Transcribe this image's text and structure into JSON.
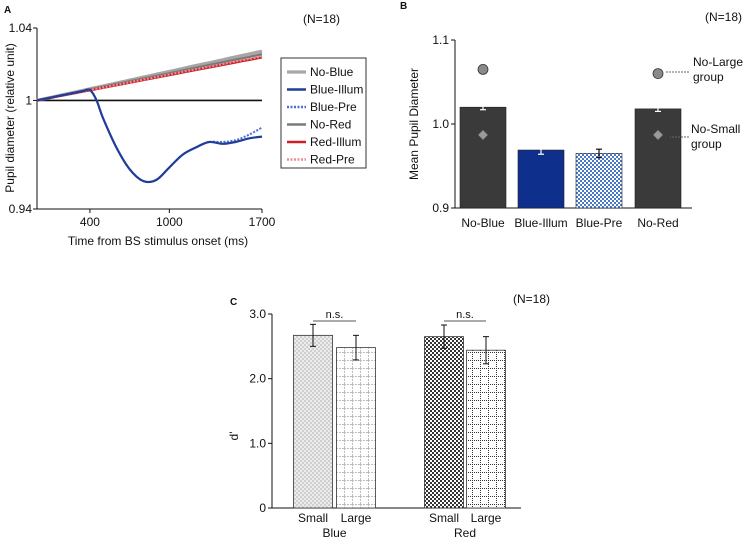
{
  "colors": {
    "no_blue": "#a6a6a6",
    "blue_illum": "#1f3d99",
    "blue_pre": "#4a6fd1",
    "no_red": "#7a7a7a",
    "red_illum": "#c8202a",
    "red_pre": "#f08b8b",
    "dark_bar": "#3a3a3a",
    "navy_bar": "#0f2f8c",
    "check_bar": "#8fb3e8"
  },
  "chart_data": [
    {
      "panel": "A",
      "type": "line",
      "title": "(N=18)",
      "xlabel": "Time from BS stimulus onset (ms)",
      "ylabel": "Pupil diameter (relative unit)",
      "xlim": [
        0,
        1700
      ],
      "ylim": [
        0.94,
        1.04
      ],
      "xticks": [
        "400",
        "1000",
        "1700"
      ],
      "yticks": [
        "0.94",
        "1",
        "1.04"
      ],
      "reference_line": 1,
      "x": [
        0,
        100,
        200,
        300,
        350,
        400,
        450,
        500,
        600,
        700,
        800,
        900,
        1000,
        1100,
        1200,
        1300,
        1400,
        1500,
        1600,
        1700
      ],
      "series": [
        {
          "name": "No-Blue",
          "style": "solid-light",
          "values": [
            1.0,
            1.0016,
            1.0032,
            1.0048,
            1.0056,
            1.0064,
            1.0072,
            1.008,
            1.0096,
            1.0112,
            1.0128,
            1.0144,
            1.016,
            1.0176,
            1.0192,
            1.0208,
            1.0224,
            1.024,
            1.0256,
            1.0272
          ]
        },
        {
          "name": "Blue-Illum",
          "style": "solid-navy",
          "values": [
            1.0,
            1.0015,
            1.003,
            1.0045,
            1.0052,
            1.0058,
            1.0,
            0.99,
            0.974,
            0.962,
            0.9555,
            0.956,
            0.963,
            0.97,
            0.974,
            0.977,
            0.976,
            0.977,
            0.979,
            0.98
          ]
        },
        {
          "name": "Blue-Pre",
          "style": "dashed-blue",
          "values": [
            1.0,
            1.0015,
            1.003,
            1.0045,
            1.0052,
            1.0058,
            1.0,
            0.99,
            0.974,
            0.962,
            0.9555,
            0.956,
            0.963,
            0.97,
            0.974,
            0.977,
            0.977,
            0.978,
            0.981,
            0.985
          ]
        },
        {
          "name": "No-Red",
          "style": "solid-gray",
          "values": [
            1.0,
            1.0015,
            1.003,
            1.0045,
            1.0053,
            1.006,
            1.0068,
            1.0075,
            1.009,
            1.0105,
            1.012,
            1.0135,
            1.015,
            1.0165,
            1.018,
            1.0195,
            1.021,
            1.0225,
            1.024,
            1.0255
          ]
        },
        {
          "name": "Red-Illum",
          "style": "solid-red",
          "values": [
            1.0,
            1.0014,
            1.0028,
            1.0042,
            1.0049,
            1.0056,
            1.0063,
            1.007,
            1.0084,
            1.0098,
            1.0112,
            1.0126,
            1.014,
            1.0154,
            1.0168,
            1.0182,
            1.0196,
            1.021,
            1.0224,
            1.0238
          ]
        },
        {
          "name": "Red-Pre",
          "style": "dashed-pink",
          "values": [
            1.0,
            1.0015,
            1.0029,
            1.0044,
            1.0051,
            1.0058,
            1.0065,
            1.0072,
            1.0086,
            1.01,
            1.0115,
            1.0129,
            1.0143,
            1.0158,
            1.0172,
            1.0186,
            1.02,
            1.0215,
            1.0229,
            1.0243
          ]
        }
      ]
    },
    {
      "panel": "B",
      "type": "bar",
      "title": "(N=18)",
      "ylabel": "Mean Pupil Diameter",
      "ylim": [
        0.9,
        1.1
      ],
      "yticks": [
        "0.9",
        "1.0",
        "1.1"
      ],
      "categories": [
        "No-Blue",
        "Blue-Illum",
        "Blue-Pre",
        "No-Red"
      ],
      "values": [
        1.02,
        0.969,
        0.965,
        1.018
      ],
      "errors": [
        0.003,
        0.005,
        0.005,
        0.003
      ],
      "fills": [
        "dark",
        "navy",
        "checker",
        "dark"
      ],
      "markers": [
        {
          "category": "No-Blue",
          "large": 1.065,
          "small": 0.987
        },
        {
          "category": "No-Red",
          "large": 1.06,
          "small": 0.987
        }
      ],
      "annotations": [
        "No-Large group",
        "No-Small group"
      ]
    },
    {
      "panel": "C",
      "type": "bar",
      "title": "(N=18)",
      "ylabel": "d'",
      "ylim": [
        0,
        3.0
      ],
      "yticks": [
        "0",
        "1.0",
        "2.0",
        "3.0"
      ],
      "groups": [
        "Blue",
        "Red"
      ],
      "categories": [
        "Small",
        "Large",
        "Small",
        "Large"
      ],
      "values": [
        2.67,
        2.48,
        2.65,
        2.44
      ],
      "errors": [
        0.17,
        0.19,
        0.18,
        0.21
      ],
      "significance": [
        "n.s.",
        "n.s."
      ]
    }
  ]
}
